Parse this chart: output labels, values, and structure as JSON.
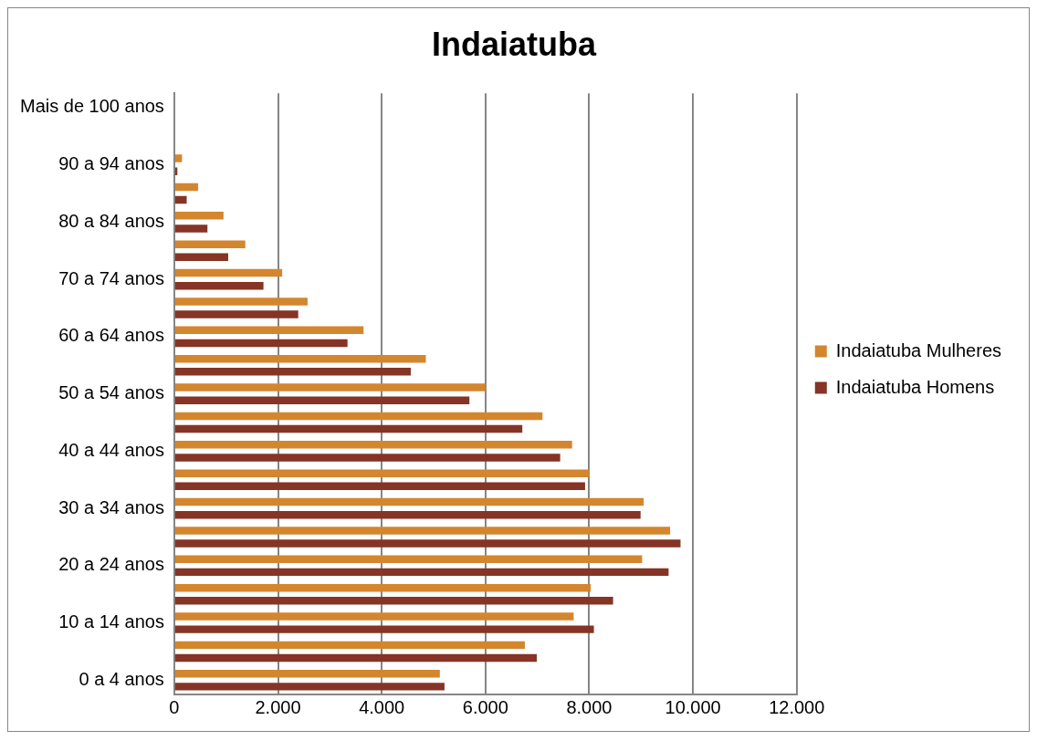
{
  "chart_data": {
    "type": "bar",
    "orientation": "horizontal",
    "title": "Indaiatuba",
    "categories": [
      "Mais de 100 anos",
      null,
      "90 a 94 anos",
      null,
      "80 a 84 anos",
      null,
      "70 a 74 anos",
      null,
      "60 a 64 anos",
      null,
      "50 a 54 anos",
      null,
      "40 a 44 anos",
      null,
      "30 a 34 anos",
      null,
      "20 a 24 anos",
      null,
      "10 a 14 anos",
      null,
      "0 a 4 anos"
    ],
    "series": [
      {
        "name": "Indaiatuba Mulheres",
        "color": "#d4862e",
        "values": [
          0,
          0,
          150,
          460,
          950,
          1370,
          2080,
          2570,
          3650,
          4850,
          6000,
          7100,
          7670,
          8000,
          9050,
          9560,
          9020,
          8030,
          7700,
          6760,
          5120
        ]
      },
      {
        "name": "Indaiatuba Homens",
        "color": "#853425",
        "values": [
          0,
          0,
          60,
          240,
          640,
          1040,
          1720,
          2390,
          3340,
          4560,
          5690,
          6710,
          7440,
          7920,
          8990,
          9760,
          9530,
          8460,
          8090,
          6990,
          5210
        ]
      }
    ],
    "xlim": [
      0,
      12000
    ],
    "xticks": [
      0,
      {
        "value": 2000,
        "label": "2.000"
      },
      {
        "value": 4000,
        "label": "4.000"
      },
      {
        "value": 6000,
        "label": "6.000"
      },
      {
        "value": 8000,
        "label": "8.000"
      },
      {
        "value": 10000,
        "label": "10.000"
      },
      {
        "value": 12000,
        "label": "12.000"
      }
    ],
    "grid": "x",
    "legend": "right"
  }
}
